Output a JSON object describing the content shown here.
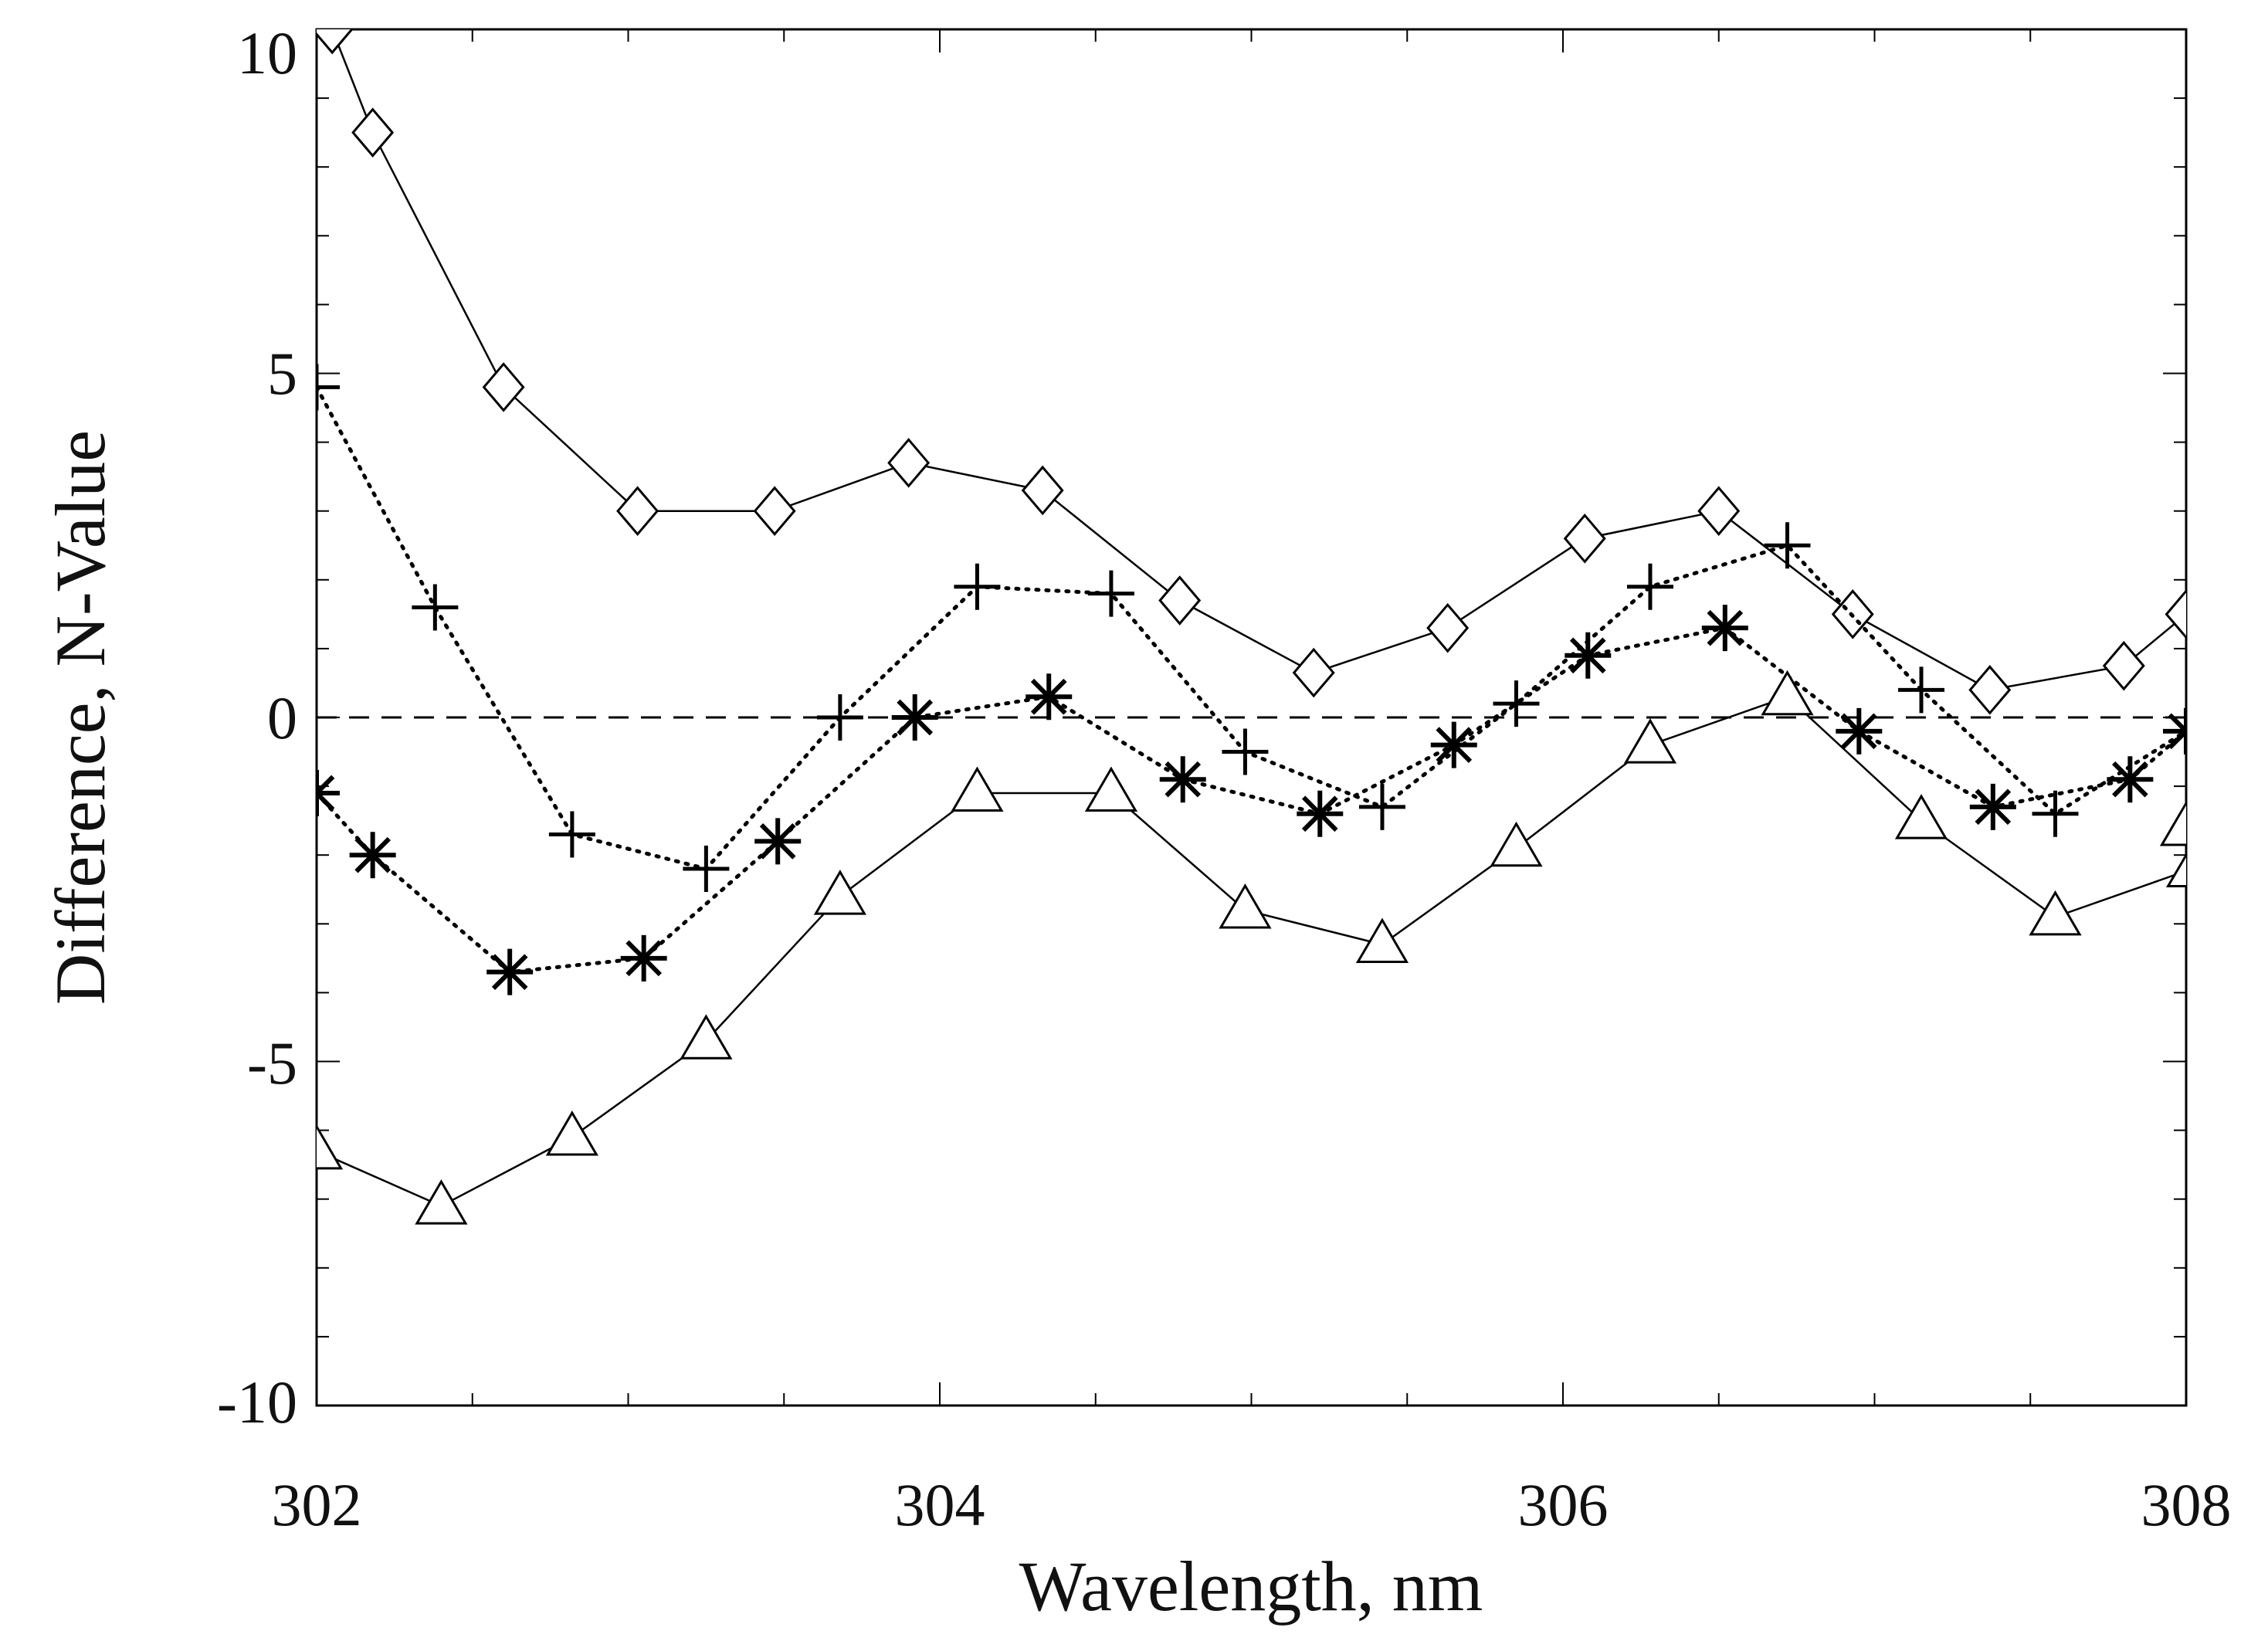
{
  "chart_data": {
    "type": "line",
    "xlabel": "Wavelength, nm",
    "ylabel": "Difference, N-Value",
    "title": "",
    "xlim": [
      302,
      308
    ],
    "ylim": [
      -10,
      10
    ],
    "x_ticks": [
      "302",
      "304",
      "306",
      "308"
    ],
    "y_ticks": [
      "10",
      "5",
      "0",
      "-5",
      "-10"
    ],
    "grid": false,
    "reference_line": {
      "y": 0,
      "style": "dashed"
    },
    "series": [
      {
        "marker": "diamond",
        "line": "solid",
        "points": [
          [
            302.05,
            10.0
          ],
          [
            302.18,
            8.5
          ],
          [
            302.6,
            4.8
          ],
          [
            303.03,
            3.0
          ],
          [
            303.47,
            3.0
          ],
          [
            303.9,
            3.7
          ],
          [
            304.33,
            3.3
          ],
          [
            304.77,
            1.7
          ],
          [
            305.2,
            0.65
          ],
          [
            305.63,
            1.3
          ],
          [
            306.07,
            2.6
          ],
          [
            306.5,
            3.0
          ],
          [
            306.93,
            1.5
          ],
          [
            307.37,
            0.4
          ],
          [
            307.8,
            0.75
          ],
          [
            308.0,
            1.5
          ]
        ]
      },
      {
        "marker": "plus",
        "line": "dotted",
        "points": [
          [
            302.0,
            4.8
          ],
          [
            302.38,
            1.6
          ],
          [
            302.82,
            -1.7
          ],
          [
            303.25,
            -2.2
          ],
          [
            303.68,
            0.0
          ],
          [
            304.12,
            1.9
          ],
          [
            304.55,
            1.8
          ],
          [
            304.98,
            -0.5
          ],
          [
            305.42,
            -1.3
          ],
          [
            305.85,
            0.2
          ],
          [
            306.28,
            1.9
          ],
          [
            306.72,
            2.5
          ],
          [
            307.15,
            0.4
          ],
          [
            307.58,
            -1.4
          ],
          [
            308.0,
            -0.2
          ]
        ]
      },
      {
        "marker": "asterisk",
        "line": "dotted",
        "points": [
          [
            302.0,
            -1.1
          ],
          [
            302.18,
            -2.0
          ],
          [
            302.62,
            -3.7
          ],
          [
            303.05,
            -3.5
          ],
          [
            303.48,
            -1.8
          ],
          [
            303.92,
            0.0
          ],
          [
            304.35,
            0.3
          ],
          [
            304.78,
            -0.9
          ],
          [
            305.22,
            -1.4
          ],
          [
            305.65,
            -0.4
          ],
          [
            306.08,
            0.9
          ],
          [
            306.52,
            1.3
          ],
          [
            306.95,
            -0.2
          ],
          [
            307.38,
            -1.3
          ],
          [
            307.82,
            -0.9
          ],
          [
            308.0,
            -0.2
          ]
        ]
      },
      {
        "marker": "triangle",
        "line": "solid",
        "points": [
          [
            302.0,
            -6.3
          ],
          [
            302.4,
            -7.1
          ],
          [
            302.82,
            -6.1
          ],
          [
            303.25,
            -4.7
          ],
          [
            303.68,
            -2.6
          ],
          [
            304.12,
            -1.1
          ],
          [
            304.55,
            -1.1
          ],
          [
            304.98,
            -2.8
          ],
          [
            305.42,
            -3.3
          ],
          [
            305.85,
            -1.9
          ],
          [
            306.28,
            -0.4
          ],
          [
            306.72,
            0.3
          ],
          [
            307.15,
            -1.5
          ],
          [
            307.58,
            -2.9
          ],
          [
            308.02,
            -2.2
          ],
          [
            308.0,
            -1.6
          ]
        ]
      }
    ]
  }
}
